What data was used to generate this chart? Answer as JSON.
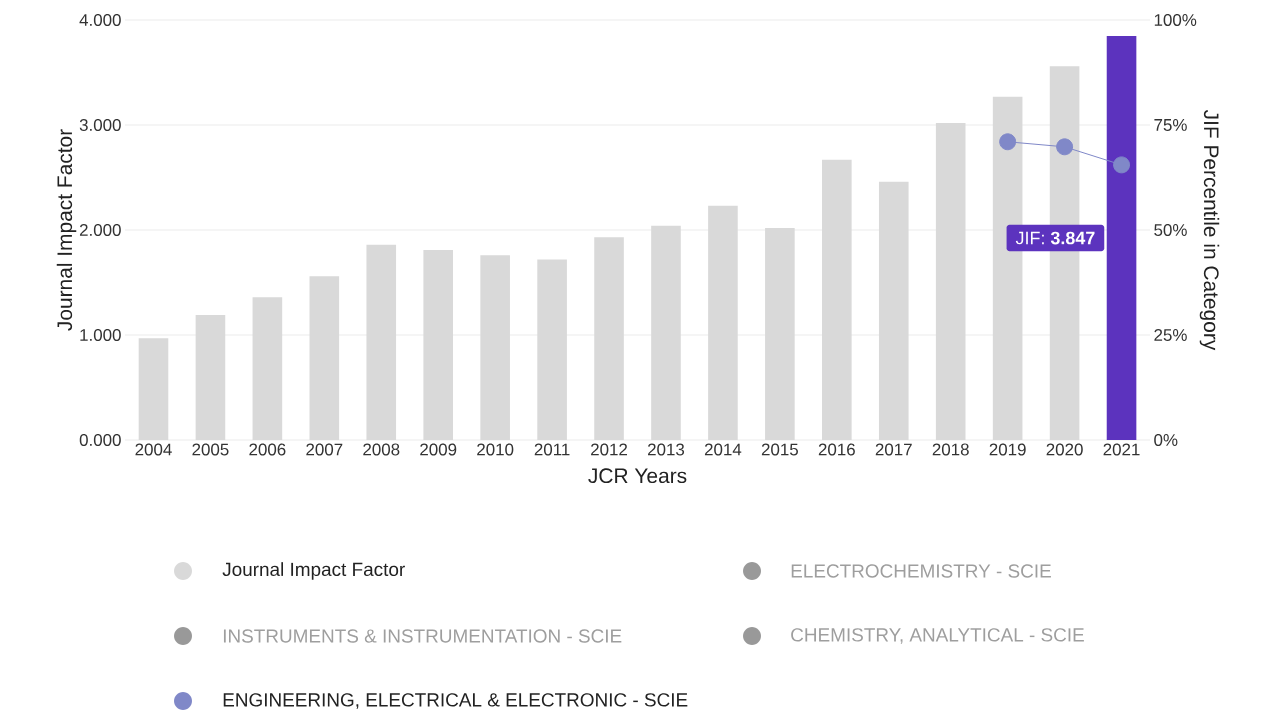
{
  "chart_data": {
    "type": "bar",
    "xlabel": "JCR Years",
    "ylabel": "Journal Impact Factor",
    "y2label": "JIF Percentile in Category",
    "categories": [
      "2004",
      "2005",
      "2006",
      "2007",
      "2008",
      "2009",
      "2010",
      "2011",
      "2012",
      "2013",
      "2014",
      "2015",
      "2016",
      "2017",
      "2018",
      "2019",
      "2020",
      "2021"
    ],
    "series": [
      {
        "name": "Journal Impact Factor",
        "color": "#d9d9d9",
        "colors": [
          "#d9d9d9",
          "#d9d9d9",
          "#d9d9d9",
          "#d9d9d9",
          "#d9d9d9",
          "#d9d9d9",
          "#d9d9d9",
          "#d9d9d9",
          "#d9d9d9",
          "#d9d9d9",
          "#d9d9d9",
          "#d9d9d9",
          "#d9d9d9",
          "#d9d9d9",
          "#d9d9d9",
          "#d9d9d9",
          "#d9d9d9",
          "#5c33be"
        ],
        "values": [
          0.97,
          1.19,
          1.36,
          1.56,
          1.86,
          1.81,
          1.76,
          1.72,
          1.93,
          2.04,
          2.23,
          2.02,
          2.67,
          2.46,
          3.02,
          3.27,
          3.56,
          3.847
        ]
      },
      {
        "name": "ELECTROCHEMISTRY - SCIE",
        "type": "line",
        "axis": "y2",
        "color": "#999999",
        "values": [
          null,
          null,
          null,
          null,
          null,
          null,
          null,
          null,
          null,
          null,
          null,
          null,
          null,
          null,
          null,
          null,
          null,
          null
        ]
      },
      {
        "name": "INSTRUMENTS & INSTRUMENTATION - SCIE",
        "type": "line",
        "axis": "y2",
        "color": "#999999",
        "values": [
          null,
          null,
          null,
          null,
          null,
          null,
          null,
          null,
          null,
          null,
          null,
          null,
          null,
          null,
          null,
          null,
          null,
          null
        ]
      },
      {
        "name": "CHEMISTRY, ANALYTICAL - SCIE",
        "type": "line",
        "axis": "y2",
        "color": "#999999",
        "values": [
          null,
          null,
          null,
          null,
          null,
          null,
          null,
          null,
          null,
          null,
          null,
          null,
          null,
          null,
          null,
          null,
          null,
          null
        ]
      },
      {
        "name": "ENGINEERING, ELECTRICAL & ELECTRONIC - SCIE",
        "type": "line",
        "axis": "y2",
        "color": "#8088c8",
        "values": [
          null,
          null,
          null,
          null,
          null,
          null,
          null,
          null,
          null,
          null,
          null,
          null,
          null,
          null,
          null,
          71,
          69.8,
          65.5
        ]
      }
    ],
    "ylim": [
      0,
      4
    ],
    "yticks": [
      {
        "value": 0,
        "label": "0.000"
      },
      {
        "value": 1,
        "label": "1.000"
      },
      {
        "value": 2,
        "label": "2.000"
      },
      {
        "value": 3,
        "label": "3.000"
      },
      {
        "value": 4,
        "label": "4.000"
      }
    ],
    "y2lim": [
      0,
      100
    ],
    "y2ticks": [
      {
        "value": 0,
        "label": "0%"
      },
      {
        "value": 25,
        "label": "25%"
      },
      {
        "value": 50,
        "label": "50%"
      },
      {
        "value": 75,
        "label": "75%"
      },
      {
        "value": 100,
        "label": "100%"
      }
    ],
    "annotations": [
      "JIF: **3.847**"
    ],
    "grid": "y",
    "legend": "bottom",
    "marker": "circle"
  }
}
